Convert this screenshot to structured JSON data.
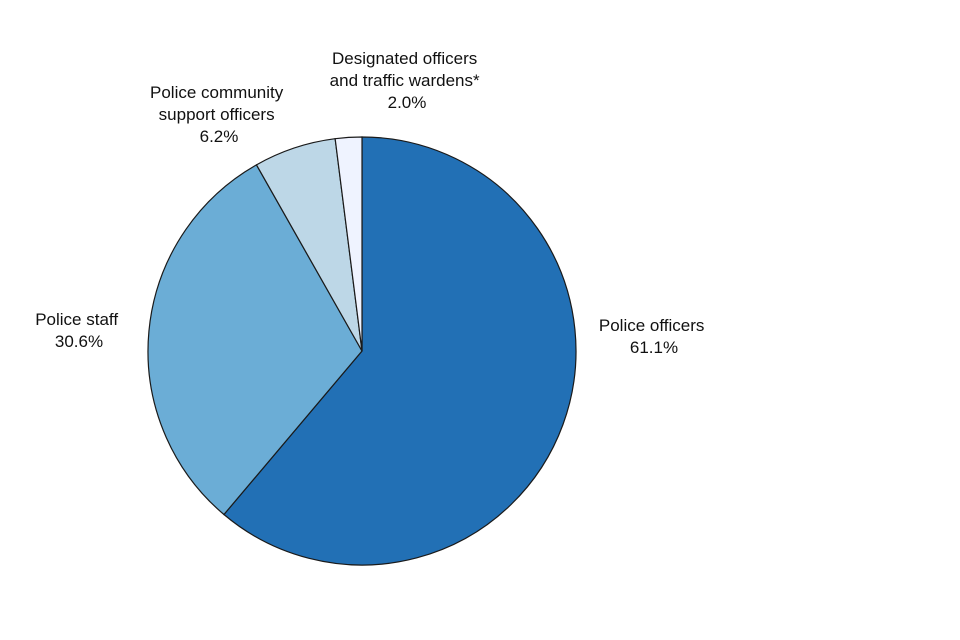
{
  "chart_data": {
    "type": "pie",
    "title": "",
    "slices": [
      {
        "name": "Police officers",
        "label_lines": [
          "Police officers"
        ],
        "value_text": "61.1%",
        "value": 61.1,
        "color": "#2270b5"
      },
      {
        "name": "Police staff",
        "label_lines": [
          "Police staff"
        ],
        "value_text": "30.6%",
        "value": 30.6,
        "color": "#6badd6"
      },
      {
        "name": "Police community support officers",
        "label_lines": [
          "Police community",
          "support officers"
        ],
        "value_text": "6.2%",
        "value": 6.2,
        "color": "#bdd7e7"
      },
      {
        "name": "Designated officers and traffic wardens*",
        "label_lines": [
          "Designated officers",
          "and traffic wardens*"
        ],
        "value_text": "2.0%",
        "value": 2.0,
        "color": "#eff3ff"
      }
    ]
  }
}
